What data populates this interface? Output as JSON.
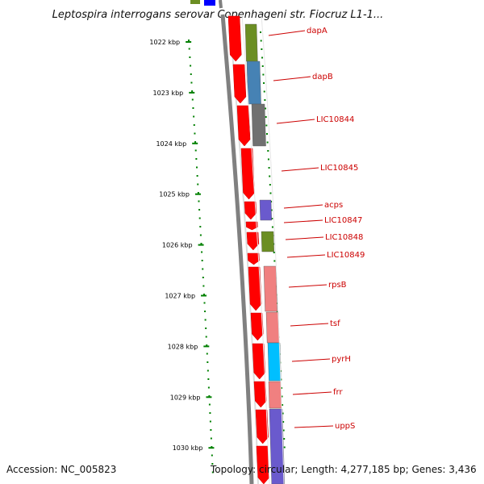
{
  "title": "Leptospira interrogans serovar Copenhageni str. Fiocruz L1-1...",
  "accession": "Accession: NC_005823",
  "topology": "Topology: circular; Length: 4,277,185 bp; Genes: 3,436",
  "scale_ticks": [
    "1022 kbp",
    "1023 kbp",
    "1024 kbp",
    "1025 kbp",
    "1026 kbp",
    "1027 kbp",
    "1028 kbp",
    "1029 kbp",
    "1030 kbp"
  ],
  "genes": [
    {
      "name": "dapA",
      "color": "#6b8e23"
    },
    {
      "name": "dapB",
      "color": "#4682b4"
    },
    {
      "name": "LIC10844",
      "color": "#707070"
    },
    {
      "name": "LIC10845",
      "color": "#ffffff"
    },
    {
      "name": "acps",
      "color": "#6a5acd"
    },
    {
      "name": "LIC10847",
      "color": "#ffffff"
    },
    {
      "name": "LIC10848",
      "color": "#6b8e23"
    },
    {
      "name": "LIC10849",
      "color": "#ffffff"
    },
    {
      "name": "rpsB",
      "color": "#f08080"
    },
    {
      "name": "tsf",
      "color": "#f08080"
    },
    {
      "name": "pyrH",
      "color": "#00bfff"
    },
    {
      "name": "frr",
      "color": "#f08080"
    },
    {
      "name": "uppS",
      "color": "#6a5acd"
    }
  ],
  "colors": {
    "backbone": "#808080",
    "cds_strand": "#ff0000",
    "tick": "#008000",
    "label": "#cc0000",
    "feature_top_blue": "#0000ff",
    "feature_top_green": "#6b8e23"
  }
}
